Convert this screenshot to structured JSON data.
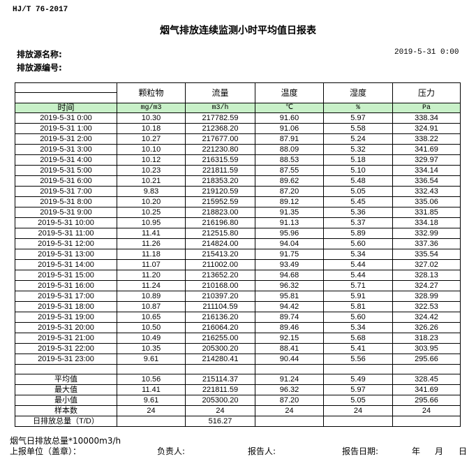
{
  "standard": "HJ/T  76-2017",
  "title": "烟气排放连续监测小时平均值日报表",
  "source_name_label": "排放源名称:",
  "source_id_label": "排放源编号:",
  "report_date": "2019-5-31 0:00",
  "colors": {
    "unit_row_bg": "#c8f0c8"
  },
  "table": {
    "headers": [
      "",
      "颗粒物",
      "流量",
      "温度",
      "湿度",
      "压力"
    ],
    "time_label": "时间",
    "units": [
      "mg/m3",
      "m3/h",
      "℃",
      "%",
      "Pa"
    ],
    "rows": [
      [
        "2019-5-31 0:00",
        "10.30",
        "217782.59",
        "91.60",
        "5.97",
        "338.34"
      ],
      [
        "2019-5-31 1:00",
        "10.18",
        "212368.20",
        "91.06",
        "5.58",
        "324.91"
      ],
      [
        "2019-5-31 2:00",
        "10.27",
        "217677.00",
        "87.91",
        "5.24",
        "338.22"
      ],
      [
        "2019-5-31 3:00",
        "10.10",
        "221230.80",
        "88.09",
        "5.32",
        "341.69"
      ],
      [
        "2019-5-31 4:00",
        "10.12",
        "216315.59",
        "88.53",
        "5.18",
        "329.97"
      ],
      [
        "2019-5-31 5:00",
        "10.23",
        "221811.59",
        "87.55",
        "5.10",
        "334.14"
      ],
      [
        "2019-5-31 6:00",
        "10.21",
        "218353.20",
        "89.62",
        "5.48",
        "336.54"
      ],
      [
        "2019-5-31 7:00",
        "9.83",
        "219120.59",
        "87.20",
        "5.05",
        "332.43"
      ],
      [
        "2019-5-31 8:00",
        "10.20",
        "215952.59",
        "89.12",
        "5.45",
        "335.06"
      ],
      [
        "2019-5-31 9:00",
        "10.25",
        "218823.00",
        "91.35",
        "5.36",
        "331.85"
      ],
      [
        "2019-5-31 10:00",
        "10.95",
        "216196.80",
        "91.13",
        "5.37",
        "334.18"
      ],
      [
        "2019-5-31 11:00",
        "11.41",
        "212515.80",
        "95.96",
        "5.89",
        "332.99"
      ],
      [
        "2019-5-31 12:00",
        "11.26",
        "214824.00",
        "94.04",
        "5.60",
        "337.36"
      ],
      [
        "2019-5-31 13:00",
        "11.18",
        "215413.20",
        "91.75",
        "5.34",
        "335.54"
      ],
      [
        "2019-5-31 14:00",
        "11.07",
        "211002.00",
        "93.49",
        "5.44",
        "327.02"
      ],
      [
        "2019-5-31 15:00",
        "11.20",
        "213652.20",
        "94.68",
        "5.44",
        "328.13"
      ],
      [
        "2019-5-31 16:00",
        "11.24",
        "210168.00",
        "96.32",
        "5.71",
        "324.27"
      ],
      [
        "2019-5-31 17:00",
        "10.89",
        "210397.20",
        "95.81",
        "5.91",
        "328.99"
      ],
      [
        "2019-5-31 18:00",
        "10.87",
        "211104.59",
        "94.42",
        "5.81",
        "322.53"
      ],
      [
        "2019-5-31 19:00",
        "10.65",
        "216136.20",
        "89.74",
        "5.60",
        "324.42"
      ],
      [
        "2019-5-31 20:00",
        "10.50",
        "216064.20",
        "89.46",
        "5.34",
        "326.26"
      ],
      [
        "2019-5-31 21:00",
        "10.49",
        "216255.00",
        "92.15",
        "5.68",
        "318.23"
      ],
      [
        "2019-5-31 22:00",
        "10.35",
        "205300.20",
        "88.41",
        "5.41",
        "303.95"
      ],
      [
        "2019-5-31 23:00",
        "9.61",
        "214280.41",
        "90.44",
        "5.56",
        "295.66"
      ]
    ],
    "summary": [
      [
        "平均值",
        "10.56",
        "215114.37",
        "91.24",
        "5.49",
        "328.45"
      ],
      [
        "最大值",
        "11.41",
        "221811.59",
        "96.32",
        "5.97",
        "341.69"
      ],
      [
        "最小值",
        "9.61",
        "205300.20",
        "87.20",
        "5.05",
        "295.66"
      ],
      [
        "样本数",
        "24",
        "24",
        "24",
        "24",
        "24"
      ],
      [
        "日排放总量（T/D）",
        "",
        "516.27",
        "",
        "",
        ""
      ]
    ]
  },
  "footer": {
    "note": "烟气日排放总量*10000m3/h",
    "unit_label": "上报单位（盖章）：",
    "responsible_label": "负责人:",
    "reporter_label": "报告人:",
    "report_date_label": "报告日期:",
    "year": "年",
    "month": "月",
    "day": "日"
  }
}
